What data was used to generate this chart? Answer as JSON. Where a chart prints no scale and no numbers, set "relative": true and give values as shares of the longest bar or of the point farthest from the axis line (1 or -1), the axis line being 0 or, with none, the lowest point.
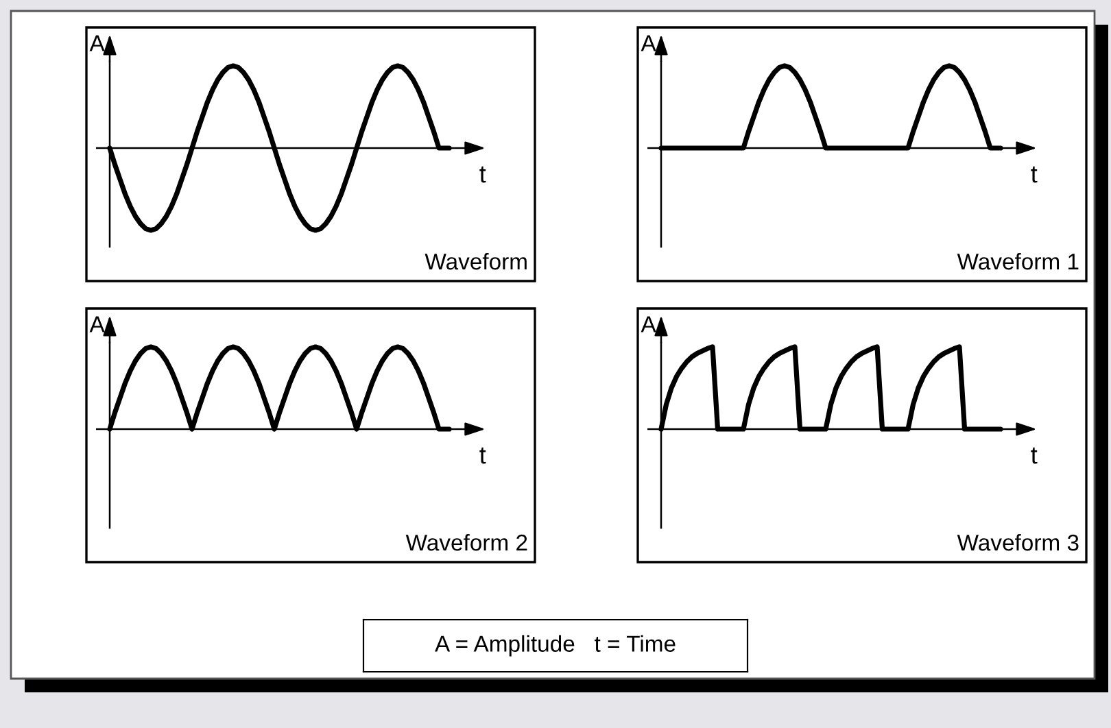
{
  "chart_data": [
    {
      "type": "line",
      "relative": true,
      "title": "Waveform",
      "xlabel": "t",
      "ylabel": "A",
      "categories": [
        null,
        null,
        null,
        null,
        null,
        null,
        null,
        null,
        null,
        null,
        null,
        null,
        null,
        null,
        null,
        null,
        null,
        null,
        null,
        null,
        null,
        null,
        null,
        null,
        null,
        null,
        null,
        null,
        null,
        null,
        null,
        null,
        null,
        null,
        null,
        null,
        null,
        null,
        null,
        null,
        null,
        null,
        null,
        null,
        null,
        null,
        null,
        null,
        null,
        null,
        null,
        null,
        null,
        null,
        null,
        null,
        null,
        null,
        null,
        null,
        null,
        null,
        null,
        null,
        null,
        null,
        null
      ],
      "series": [
        {
          "color": "#000000",
          "values": [
            0,
            -0.2,
            -0.38,
            -0.56,
            -0.71,
            -0.83,
            -0.92,
            -0.98,
            -1,
            -0.98,
            -0.92,
            -0.83,
            -0.71,
            -0.56,
            -0.38,
            -0.2,
            0,
            0.2,
            0.38,
            0.56,
            0.71,
            0.83,
            0.92,
            0.98,
            1,
            0.98,
            0.92,
            0.83,
            0.71,
            0.56,
            0.38,
            0.2,
            0,
            -0.2,
            -0.38,
            -0.56,
            -0.71,
            -0.83,
            -0.92,
            -0.98,
            -1,
            -0.98,
            -0.92,
            -0.83,
            -0.71,
            -0.56,
            -0.38,
            -0.2,
            0,
            0.2,
            0.38,
            0.56,
            0.71,
            0.83,
            0.92,
            0.98,
            1,
            0.98,
            0.92,
            0.83,
            0.71,
            0.56,
            0.38,
            0.2,
            0,
            0,
            0
          ]
        }
      ]
    },
    {
      "type": "line",
      "relative": true,
      "title": "Waveform 1",
      "xlabel": "t",
      "ylabel": "A",
      "categories": [
        null,
        null,
        null,
        null,
        null,
        null,
        null,
        null,
        null,
        null,
        null,
        null,
        null,
        null,
        null,
        null,
        null,
        null,
        null,
        null,
        null,
        null,
        null,
        null,
        null,
        null,
        null,
        null,
        null,
        null,
        null,
        null,
        null,
        null,
        null,
        null,
        null,
        null,
        null,
        null,
        null,
        null,
        null,
        null,
        null,
        null,
        null,
        null,
        null,
        null,
        null,
        null,
        null,
        null,
        null,
        null,
        null,
        null,
        null,
        null,
        null,
        null,
        null,
        null,
        null,
        null,
        null
      ],
      "series": [
        {
          "color": "#000000",
          "values": [
            0,
            0,
            0,
            0,
            0,
            0,
            0,
            0,
            0,
            0,
            0,
            0,
            0,
            0,
            0,
            0,
            0,
            0.2,
            0.38,
            0.56,
            0.71,
            0.83,
            0.92,
            0.98,
            1,
            0.98,
            0.92,
            0.83,
            0.71,
            0.56,
            0.38,
            0.2,
            0,
            0,
            0,
            0,
            0,
            0,
            0,
            0,
            0,
            0,
            0,
            0,
            0,
            0,
            0,
            0,
            0,
            0.2,
            0.38,
            0.56,
            0.71,
            0.83,
            0.92,
            0.98,
            1,
            0.98,
            0.92,
            0.83,
            0.71,
            0.56,
            0.38,
            0.2,
            0,
            0,
            0
          ]
        }
      ]
    },
    {
      "type": "line",
      "relative": true,
      "title": "Waveform 2",
      "xlabel": "t",
      "ylabel": "A",
      "categories": [
        null,
        null,
        null,
        null,
        null,
        null,
        null,
        null,
        null,
        null,
        null,
        null,
        null,
        null,
        null,
        null,
        null,
        null,
        null,
        null,
        null,
        null,
        null,
        null,
        null,
        null,
        null,
        null,
        null,
        null,
        null,
        null,
        null,
        null,
        null,
        null,
        null,
        null,
        null,
        null,
        null,
        null,
        null,
        null,
        null,
        null,
        null,
        null,
        null,
        null,
        null,
        null,
        null,
        null,
        null,
        null,
        null,
        null,
        null,
        null,
        null,
        null,
        null,
        null,
        null,
        null,
        null
      ],
      "series": [
        {
          "color": "#000000",
          "values": [
            0,
            0.2,
            0.38,
            0.56,
            0.71,
            0.83,
            0.92,
            0.98,
            1,
            0.98,
            0.92,
            0.83,
            0.71,
            0.56,
            0.38,
            0.2,
            0,
            0.2,
            0.38,
            0.56,
            0.71,
            0.83,
            0.92,
            0.98,
            1,
            0.98,
            0.92,
            0.83,
            0.71,
            0.56,
            0.38,
            0.2,
            0,
            0.2,
            0.38,
            0.56,
            0.71,
            0.83,
            0.92,
            0.98,
            1,
            0.98,
            0.92,
            0.83,
            0.71,
            0.56,
            0.38,
            0.2,
            0,
            0.2,
            0.38,
            0.56,
            0.71,
            0.83,
            0.92,
            0.98,
            1,
            0.98,
            0.92,
            0.83,
            0.71,
            0.56,
            0.38,
            0.2,
            0,
            0,
            0
          ]
        }
      ]
    },
    {
      "type": "line",
      "relative": true,
      "title": "Waveform 3",
      "xlabel": "t",
      "ylabel": "A",
      "categories": [
        null,
        null,
        null,
        null,
        null,
        null,
        null,
        null,
        null,
        null,
        null,
        null,
        null,
        null,
        null,
        null,
        null,
        null,
        null,
        null,
        null,
        null,
        null,
        null,
        null,
        null,
        null,
        null,
        null,
        null,
        null,
        null,
        null,
        null,
        null,
        null,
        null,
        null,
        null,
        null,
        null,
        null,
        null,
        null,
        null,
        null,
        null,
        null,
        null,
        null,
        null,
        null,
        null,
        null,
        null,
        null,
        null,
        null,
        null,
        null,
        null,
        null,
        null,
        null,
        null,
        null,
        null
      ],
      "series": [
        {
          "color": "#000000",
          "values": [
            0,
            0.3,
            0.5,
            0.64,
            0.74,
            0.82,
            0.88,
            0.92,
            0.95,
            0.98,
            1,
            0,
            0,
            0,
            0,
            0,
            0,
            0.3,
            0.5,
            0.64,
            0.74,
            0.82,
            0.88,
            0.92,
            0.95,
            0.98,
            1,
            0,
            0,
            0,
            0,
            0,
            0,
            0.3,
            0.5,
            0.64,
            0.74,
            0.82,
            0.88,
            0.92,
            0.95,
            0.98,
            1,
            0,
            0,
            0,
            0,
            0,
            0,
            0.3,
            0.5,
            0.64,
            0.74,
            0.82,
            0.88,
            0.92,
            0.95,
            0.98,
            1,
            0,
            0,
            0,
            0,
            0,
            0,
            0,
            0
          ]
        }
      ]
    },
    {
      "type": "other",
      "annotations": [
        "A = Amplitude   t = Time"
      ]
    }
  ]
}
